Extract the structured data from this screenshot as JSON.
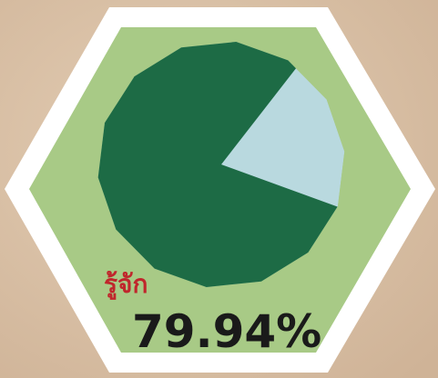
{
  "chart_data": {
    "type": "pie",
    "categories": [
      "รู้จัก"
    ],
    "values": [
      79.94
    ],
    "value_labels": [
      "79.94%"
    ],
    "colors": [
      "#1d6b45"
    ],
    "rest_color": "#b9d9df"
  }
}
